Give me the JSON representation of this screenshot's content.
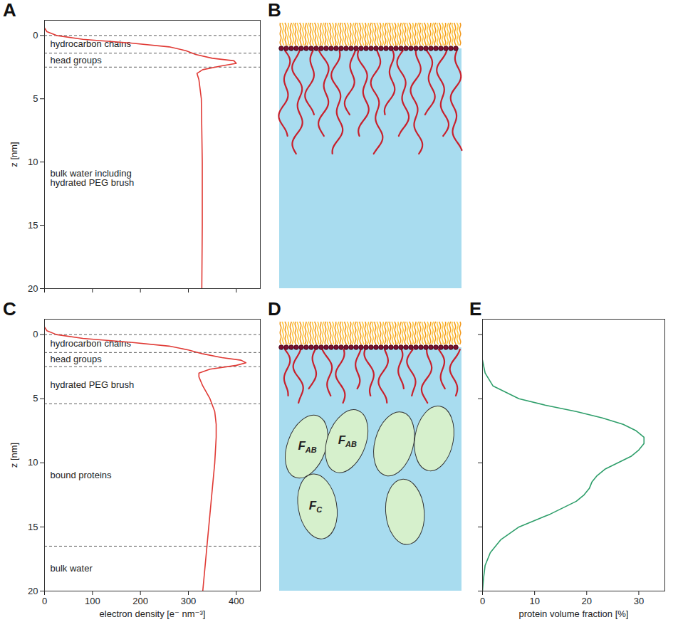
{
  "chart_data": [
    {
      "panel": "A",
      "type": "line",
      "y_label": "z [nm]",
      "color": "#e03a35",
      "x": [
        0,
        5,
        25,
        80,
        180,
        260,
        295,
        315,
        350,
        395,
        400,
        370,
        330,
        318,
        322,
        327,
        329,
        329,
        328
      ],
      "y": [
        -0.6,
        -0.3,
        0,
        0.3,
        0.6,
        0.9,
        1.2,
        1.5,
        1.8,
        2.0,
        2.2,
        2.4,
        2.7,
        3.0,
        3.5,
        5,
        10,
        15,
        20
      ],
      "xlim": [
        0,
        450
      ],
      "xticks": [
        0,
        100,
        200,
        300,
        400
      ],
      "ylim": [
        -1.2,
        20
      ],
      "yticks": [
        0,
        5,
        10,
        15,
        20
      ],
      "tick_labels": "y",
      "annotations": [
        {
          "text": "hydrocarbon chains",
          "from": 0,
          "to": 1.4
        },
        {
          "text": "head groups",
          "from": 1.4,
          "to": 2.5
        },
        {
          "text": "bulk water including hydrated PEG brush",
          "from": 2.5,
          "to": 20
        }
      ]
    },
    {
      "panel": "C",
      "type": "line",
      "y_label": "z [nm]",
      "x_label": "electron density [e⁻ nm⁻³]",
      "color": "#e03a35",
      "x": [
        0,
        5,
        25,
        80,
        180,
        260,
        300,
        330,
        370,
        410,
        420,
        400,
        345,
        322,
        322,
        330,
        345,
        355,
        358,
        358,
        355,
        350,
        345,
        340,
        335,
        330
      ],
      "y": [
        -0.6,
        -0.3,
        0,
        0.3,
        0.6,
        0.9,
        1.2,
        1.5,
        1.8,
        2.0,
        2.2,
        2.4,
        2.7,
        3.0,
        3.3,
        4,
        5,
        6,
        7,
        8,
        10,
        12,
        14,
        16,
        18,
        20
      ],
      "xlim": [
        0,
        450
      ],
      "xticks": [
        0,
        100,
        200,
        300,
        400
      ],
      "ylim": [
        -1.2,
        20
      ],
      "yticks": [
        0,
        5,
        10,
        15,
        20
      ],
      "annotations": [
        {
          "text": "hydrocarbon chains",
          "from": 0,
          "to": 1.4
        },
        {
          "text": "head groups",
          "from": 1.4,
          "to": 2.5
        },
        {
          "text": "hydrated PEG brush",
          "from": 2.5,
          "to": 5.4
        },
        {
          "text": "bound proteins",
          "from": 5.4,
          "to": 16.5
        },
        {
          "text": "bulk water",
          "from": 16.5,
          "to": 20
        }
      ]
    },
    {
      "panel": "E",
      "type": "line",
      "x_label": "protein volume fraction [%]",
      "color": "#2e9e6a",
      "x": [
        0,
        0.5,
        2,
        7,
        12,
        18,
        23,
        27,
        29.5,
        31,
        31,
        30,
        28.5,
        26,
        23.5,
        22,
        21,
        20.5,
        19.5,
        18,
        13,
        7,
        3.5,
        1.5,
        0.5,
        0.2,
        0
      ],
      "y": [
        2,
        3,
        4,
        5,
        5.5,
        6,
        6.5,
        7,
        7.5,
        8,
        8.5,
        9,
        9.5,
        10,
        10.5,
        11,
        11.5,
        12,
        12.5,
        13,
        14,
        15,
        16,
        17,
        18,
        19,
        20
      ],
      "xlim": [
        0,
        35
      ],
      "xticks": [
        0,
        10,
        20,
        30
      ],
      "ylim": [
        -1.2,
        20
      ],
      "yticks": [
        0,
        5,
        10,
        15,
        20
      ],
      "tick_labels": "x"
    }
  ],
  "diagrams": [
    {
      "panel": "B"
    },
    {
      "panel": "D",
      "labels": [
        {
          "symbol": "F",
          "subscript": "AB"
        },
        {
          "symbol": "F",
          "subscript": "AB"
        },
        {
          "symbol": "F",
          "subscript": "C"
        }
      ]
    }
  ]
}
